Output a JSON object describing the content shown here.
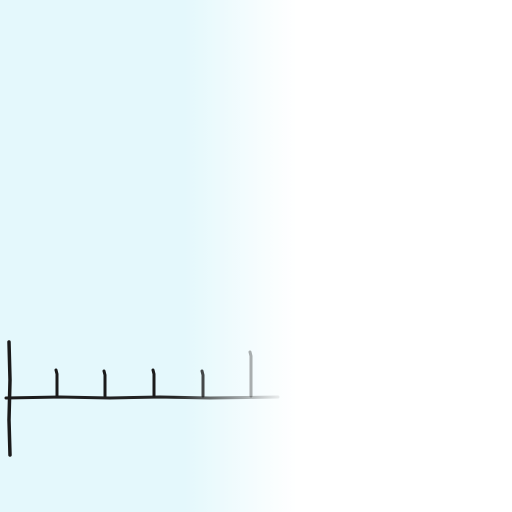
{
  "scene": {
    "background_colors": {
      "light_blue": "#E4F8FC",
      "white": "#FFFFFF"
    },
    "ruler": {
      "stroke_color": "#1A1A1A",
      "tick_count": 5,
      "has_vertical_origin_bar": true,
      "ticks_fade_to_right": true
    }
  }
}
